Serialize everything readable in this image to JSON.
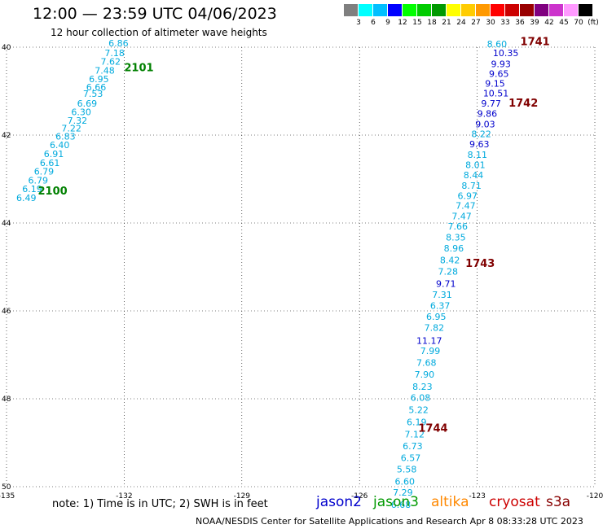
{
  "title": "12:00 — 23:59 UTC 04/06/2023",
  "subtitle": "12 hour collection of altimeter wave heights",
  "colorbar": {
    "colors": [
      "#7f7f7f",
      "#00ffff",
      "#00bfff",
      "#0000ff",
      "#00ff00",
      "#00cc00",
      "#009900",
      "#ffff00",
      "#ffcc00",
      "#ff9900",
      "#ff0000",
      "#cc0000",
      "#990000",
      "#800080",
      "#cc33cc",
      "#ff99ff",
      "#000000"
    ],
    "labels": [
      "3",
      "6",
      "9",
      "12",
      "15",
      "18",
      "21",
      "24",
      "27",
      "30",
      "33",
      "36",
      "39",
      "42",
      "45",
      "70",
      "(ft)"
    ]
  },
  "map": {
    "lon_ticks": [
      "-135",
      "-132",
      "-129",
      "-126",
      "-123",
      "-120"
    ],
    "lat_ticks": [
      "40",
      "42",
      "44",
      "46",
      "48",
      "50"
    ]
  },
  "tracks": [
    {
      "id": "2101",
      "color": "#008000",
      "lon": -132.0,
      "lat": 40.55
    },
    {
      "id": "2100",
      "color": "#008000",
      "lon": -134.2,
      "lat": 43.35
    },
    {
      "id": "1741",
      "color": "#800000",
      "lon": -121.9,
      "lat": 39.95
    },
    {
      "id": "1742",
      "color": "#800000",
      "lon": -122.2,
      "lat": 41.35
    },
    {
      "id": "1743",
      "color": "#800000",
      "lon": -123.3,
      "lat": 45.0
    },
    {
      "id": "1744",
      "color": "#800000",
      "lon": -124.5,
      "lat": 48.75
    }
  ],
  "observations": [
    {
      "lon": -132.4,
      "lat": 39.98,
      "swh": "6.86",
      "color": "#00aadd"
    },
    {
      "lon": -132.5,
      "lat": 40.2,
      "swh": "7.18",
      "color": "#00aadd"
    },
    {
      "lon": -132.6,
      "lat": 40.4,
      "swh": "7.62",
      "color": "#00aadd"
    },
    {
      "lon": -132.75,
      "lat": 40.6,
      "swh": "7.48",
      "color": "#00aadd"
    },
    {
      "lon": -132.9,
      "lat": 40.8,
      "swh": "6.95",
      "color": "#00aadd"
    },
    {
      "lon": -132.97,
      "lat": 40.98,
      "swh": "6.66",
      "color": "#00aadd"
    },
    {
      "lon": -133.05,
      "lat": 41.13,
      "swh": "7.53",
      "color": "#00aadd"
    },
    {
      "lon": -133.2,
      "lat": 41.35,
      "swh": "6.69",
      "color": "#00aadd"
    },
    {
      "lon": -133.35,
      "lat": 41.55,
      "swh": "6.30",
      "color": "#00aadd"
    },
    {
      "lon": -133.45,
      "lat": 41.74,
      "swh": "7.32",
      "color": "#00aadd"
    },
    {
      "lon": -133.6,
      "lat": 41.92,
      "swh": "7.22",
      "color": "#00aadd"
    },
    {
      "lon": -133.75,
      "lat": 42.1,
      "swh": "6.83",
      "color": "#00aadd"
    },
    {
      "lon": -133.9,
      "lat": 42.3,
      "swh": "6.40",
      "color": "#00aadd"
    },
    {
      "lon": -134.05,
      "lat": 42.5,
      "swh": "6.91",
      "color": "#00aadd"
    },
    {
      "lon": -134.15,
      "lat": 42.7,
      "swh": "6.61",
      "color": "#00aadd"
    },
    {
      "lon": -134.3,
      "lat": 42.9,
      "swh": "6.79",
      "color": "#00aadd"
    },
    {
      "lon": -134.45,
      "lat": 43.1,
      "swh": "6.79",
      "color": "#00aadd"
    },
    {
      "lon": -134.6,
      "lat": 43.3,
      "swh": "6.19",
      "color": "#00aadd"
    },
    {
      "lon": -134.75,
      "lat": 43.5,
      "swh": "6.49",
      "color": "#00aadd"
    },
    {
      "lon": -122.75,
      "lat": 40.0,
      "swh": "8.60",
      "color": "#00aadd"
    },
    {
      "lon": -122.6,
      "lat": 40.2,
      "swh": "10.35",
      "color": "#0000cc"
    },
    {
      "lon": -122.65,
      "lat": 40.45,
      "swh": "9.93",
      "color": "#0000cc"
    },
    {
      "lon": -122.7,
      "lat": 40.68,
      "swh": "9.65",
      "color": "#0000cc"
    },
    {
      "lon": -122.8,
      "lat": 40.9,
      "swh": "9.15",
      "color": "#0000cc"
    },
    {
      "lon": -122.85,
      "lat": 41.12,
      "swh": "10.51",
      "color": "#0000cc"
    },
    {
      "lon": -122.9,
      "lat": 41.35,
      "swh": "9.77",
      "color": "#0000cc"
    },
    {
      "lon": -123.0,
      "lat": 41.58,
      "swh": "9.86",
      "color": "#0000cc"
    },
    {
      "lon": -123.05,
      "lat": 41.82,
      "swh": "9.03",
      "color": "#0000cc"
    },
    {
      "lon": -123.15,
      "lat": 42.05,
      "swh": "8.22",
      "color": "#00aadd"
    },
    {
      "lon": -123.2,
      "lat": 42.28,
      "swh": "9.63",
      "color": "#0000cc"
    },
    {
      "lon": -123.25,
      "lat": 42.52,
      "swh": "8.11",
      "color": "#00aadd"
    },
    {
      "lon": -123.3,
      "lat": 42.75,
      "swh": "8.01",
      "color": "#00aadd"
    },
    {
      "lon": -123.35,
      "lat": 42.98,
      "swh": "8.44",
      "color": "#00aadd"
    },
    {
      "lon": -123.4,
      "lat": 43.22,
      "swh": "8.71",
      "color": "#00aadd"
    },
    {
      "lon": -123.5,
      "lat": 43.45,
      "swh": "6.97",
      "color": "#00aadd"
    },
    {
      "lon": -123.55,
      "lat": 43.68,
      "swh": "7.47",
      "color": "#00aadd"
    },
    {
      "lon": -123.65,
      "lat": 43.92,
      "swh": "7.47",
      "color": "#00aadd"
    },
    {
      "lon": -123.75,
      "lat": 44.15,
      "swh": "7.66",
      "color": "#00aadd"
    },
    {
      "lon": -123.8,
      "lat": 44.4,
      "swh": "8.35",
      "color": "#00aadd"
    },
    {
      "lon": -123.85,
      "lat": 44.65,
      "swh": "8.96",
      "color": "#00aadd"
    },
    {
      "lon": -123.95,
      "lat": 44.92,
      "swh": "8.42",
      "color": "#00aadd"
    },
    {
      "lon": -124.0,
      "lat": 45.18,
      "swh": "7.28",
      "color": "#00aadd"
    },
    {
      "lon": -124.05,
      "lat": 45.45,
      "swh": "9.71",
      "color": "#0000cc"
    },
    {
      "lon": -124.15,
      "lat": 45.7,
      "swh": "7.31",
      "color": "#00aadd"
    },
    {
      "lon": -124.2,
      "lat": 45.95,
      "swh": "6.37",
      "color": "#00aadd"
    },
    {
      "lon": -124.3,
      "lat": 46.2,
      "swh": "6.95",
      "color": "#00aadd"
    },
    {
      "lon": -124.35,
      "lat": 46.45,
      "swh": "7.82",
      "color": "#00aadd"
    },
    {
      "lon": -124.55,
      "lat": 46.75,
      "swh": "11.17",
      "color": "#0000cc"
    },
    {
      "lon": -124.45,
      "lat": 46.98,
      "swh": "7.99",
      "color": "#00aadd"
    },
    {
      "lon": -124.55,
      "lat": 47.25,
      "swh": "7.68",
      "color": "#00aadd"
    },
    {
      "lon": -124.6,
      "lat": 47.52,
      "swh": "7.90",
      "color": "#00aadd"
    },
    {
      "lon": -124.65,
      "lat": 47.8,
      "swh": "8.23",
      "color": "#00aadd"
    },
    {
      "lon": -124.7,
      "lat": 48.05,
      "swh": "6.08",
      "color": "#00aadd"
    },
    {
      "lon": -124.75,
      "lat": 48.32,
      "swh": "5.22",
      "color": "#00aadd"
    },
    {
      "lon": -124.8,
      "lat": 48.6,
      "swh": "6.19",
      "color": "#00aadd"
    },
    {
      "lon": -124.85,
      "lat": 48.88,
      "swh": "7.12",
      "color": "#00aadd"
    },
    {
      "lon": -124.9,
      "lat": 49.15,
      "swh": "6.73",
      "color": "#00aadd"
    },
    {
      "lon": -124.95,
      "lat": 49.42,
      "swh": "6.57",
      "color": "#00aadd"
    },
    {
      "lon": -125.05,
      "lat": 49.68,
      "swh": "5.58",
      "color": "#00aadd"
    },
    {
      "lon": -125.1,
      "lat": 49.95,
      "swh": "6.60",
      "color": "#00aadd"
    },
    {
      "lon": -125.15,
      "lat": 50.2,
      "swh": "7.29",
      "color": "#00aadd"
    },
    {
      "lon": -125.2,
      "lat": 50.48,
      "swh": "6.68",
      "color": "#00aadd"
    }
  ],
  "note": "note:  1) Time is in UTC;  2) SWH is in feet",
  "satellites": [
    {
      "name": "jason2",
      "color": "#0000cc"
    },
    {
      "name": "jason3",
      "color": "#009900"
    },
    {
      "name": "altika",
      "color": "#ff8800"
    },
    {
      "name": "cryosat",
      "color": "#cc0000"
    },
    {
      "name": "s3a",
      "color": "#880000"
    }
  ],
  "footer": "NOAA/NESDIS Center for Satellite Applications and Research    Apr  8 08:33:28 UTC 2023"
}
